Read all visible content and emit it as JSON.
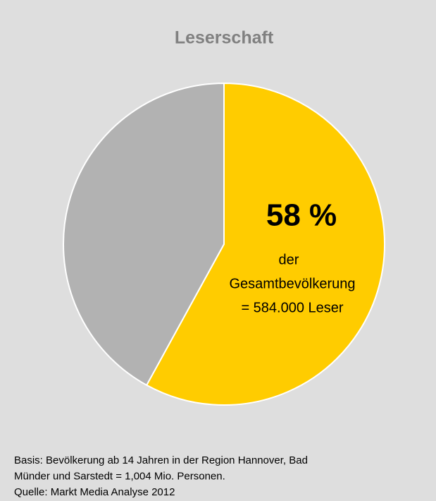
{
  "chart_data": {
    "type": "pie",
    "title": "Leserschaft",
    "categories": [
      null,
      null
    ],
    "values": [
      58,
      42
    ],
    "value_labels": [
      "58 %",
      null
    ],
    "colors": [
      "#ffcc00",
      "#b2b2b2"
    ],
    "annotations": [
      "der",
      "Gesamtbevölkerung",
      "= 584.000 Leser"
    ],
    "footnotes": [
      "Basis: Bevölkerung ab 14 Jahren in der Region Hannover, Bad",
      "Münder und Sarstedt = 1,004 Mio. Personen.",
      "Quelle: Markt Media Analyse 2012"
    ]
  }
}
